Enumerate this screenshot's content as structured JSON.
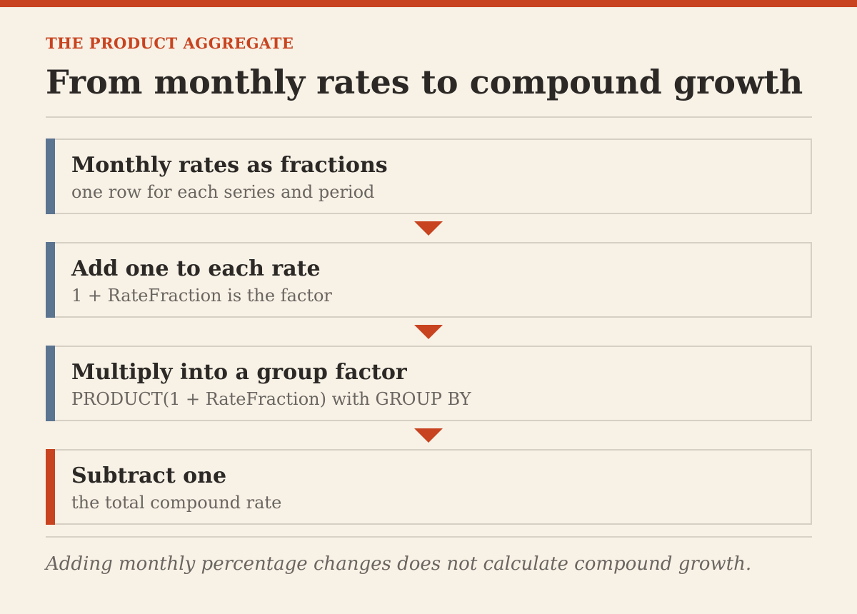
{
  "colors": {
    "accent": "#c8431f",
    "step_bar": "#5b7490",
    "final_bar": "#c8431f",
    "background": "#f7f1e6"
  },
  "header": {
    "eyebrow": "THE PRODUCT AGGREGATE",
    "title": "From monthly rates to compound growth"
  },
  "steps": [
    {
      "title": "Monthly rates as fractions",
      "subtitle": "one row for each series and period"
    },
    {
      "title": "Add one to each rate",
      "subtitle": "1 + RateFraction is the factor"
    },
    {
      "title": "Multiply into a group factor",
      "subtitle": "PRODUCT(1 + RateFraction) with GROUP BY"
    },
    {
      "title": "Subtract one",
      "subtitle": "the total compound rate"
    }
  ],
  "caption": "Adding monthly percentage changes does not calculate compound growth."
}
